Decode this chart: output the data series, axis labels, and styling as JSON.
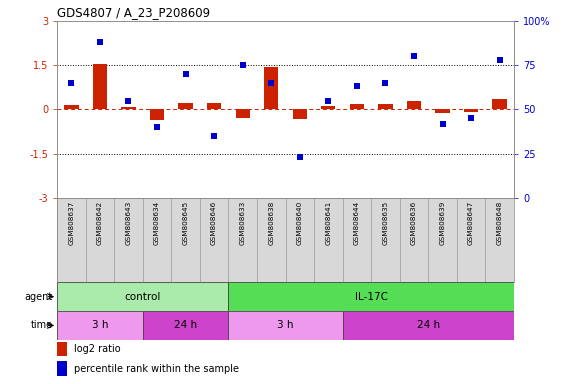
{
  "title": "GDS4807 / A_23_P208609",
  "samples": [
    "GSM808637",
    "GSM808642",
    "GSM808643",
    "GSM808634",
    "GSM808645",
    "GSM808646",
    "GSM808633",
    "GSM808638",
    "GSM808640",
    "GSM808641",
    "GSM808644",
    "GSM808635",
    "GSM808636",
    "GSM808639",
    "GSM808647",
    "GSM808648"
  ],
  "log2_ratio": [
    0.15,
    1.55,
    0.07,
    -0.35,
    0.22,
    0.22,
    -0.3,
    1.45,
    -0.32,
    0.1,
    0.18,
    0.18,
    0.28,
    -0.12,
    -0.08,
    0.35
  ],
  "percentile": [
    65,
    88,
    55,
    40,
    70,
    35,
    75,
    65,
    23,
    55,
    63,
    65,
    80,
    42,
    45,
    78
  ],
  "bar_color": "#cc2200",
  "dot_color": "#0000cc",
  "ylim_left": [
    -3,
    3
  ],
  "ylim_right": [
    0,
    100
  ],
  "yticks_left": [
    -3,
    -1.5,
    0,
    1.5,
    3
  ],
  "yticks_right": [
    0,
    25,
    50,
    75,
    100
  ],
  "agent_groups": [
    {
      "label": "control",
      "start": 0,
      "end": 6,
      "color": "#aaeaaa"
    },
    {
      "label": "IL-17C",
      "start": 6,
      "end": 16,
      "color": "#55dd55"
    }
  ],
  "time_groups": [
    {
      "label": "3 h",
      "start": 0,
      "end": 3,
      "color": "#ee99ee"
    },
    {
      "label": "24 h",
      "start": 3,
      "end": 6,
      "color": "#cc44cc"
    },
    {
      "label": "3 h",
      "start": 6,
      "end": 10,
      "color": "#ee99ee"
    },
    {
      "label": "24 h",
      "start": 10,
      "end": 16,
      "color": "#cc44cc"
    }
  ],
  "legend_items": [
    {
      "color": "#cc2200",
      "label": "log2 ratio"
    },
    {
      "color": "#0000cc",
      "label": "percentile rank within the sample"
    }
  ],
  "bg_color": "#ffffff"
}
